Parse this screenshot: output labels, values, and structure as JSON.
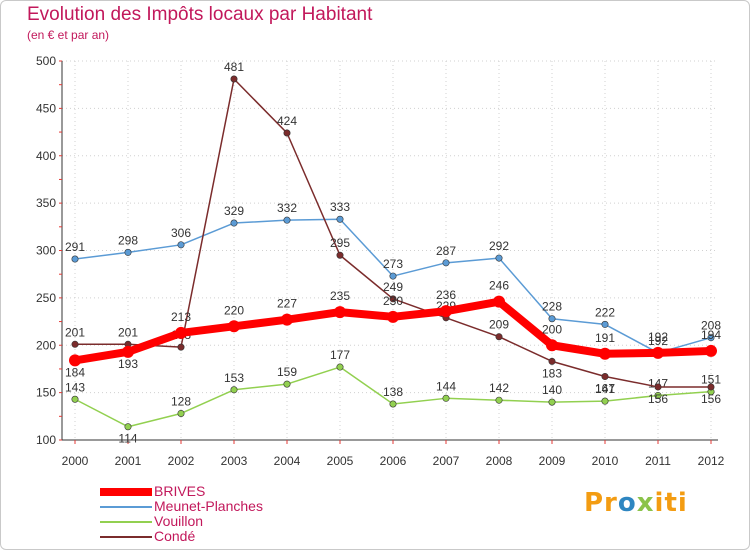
{
  "header": {
    "title": "Evolution des Impôts locaux par Habitant",
    "subtitle": "(en € et par an)"
  },
  "chart_data": {
    "type": "line",
    "title": "Evolution des Impôts locaux par Habitant",
    "subtitle": "(en € et par an)",
    "xlabel": "",
    "ylabel": "",
    "categories": [
      "2000",
      "2001",
      "2002",
      "2003",
      "2004",
      "2005",
      "2006",
      "2007",
      "2008",
      "2009",
      "2010",
      "2011",
      "2012"
    ],
    "ylim": [
      100,
      500
    ],
    "yticks": [
      100,
      150,
      200,
      250,
      300,
      350,
      400,
      450,
      500
    ],
    "grid": true,
    "legend_position": "bottom-left",
    "series": [
      {
        "name": "BRIVES",
        "color": "#ff0000",
        "emphasis": true,
        "values": [
          184,
          193,
          213,
          220,
          227,
          235,
          230,
          236,
          246,
          200,
          191,
          192,
          194
        ]
      },
      {
        "name": "Meunet-Planches",
        "color": "#5b9bd5",
        "values": [
          291,
          298,
          306,
          329,
          332,
          333,
          273,
          287,
          292,
          228,
          222,
          192,
          208
        ]
      },
      {
        "name": "Vouillon",
        "color": "#92d050",
        "values": [
          143,
          114,
          128,
          153,
          159,
          177,
          138,
          144,
          142,
          140,
          141,
          147,
          151
        ]
      },
      {
        "name": "Condé",
        "color": "#7b2c2c",
        "values": [
          201,
          201,
          198,
          481,
          424,
          295,
          249,
          229,
          209,
          183,
          167,
          156,
          156
        ]
      }
    ]
  },
  "logo": {
    "parts": [
      "Pr",
      "o",
      "x",
      "iti"
    ],
    "colors": [
      "#f39c12",
      "#2e86c1",
      "#8bc34a",
      "#f39c12"
    ]
  }
}
